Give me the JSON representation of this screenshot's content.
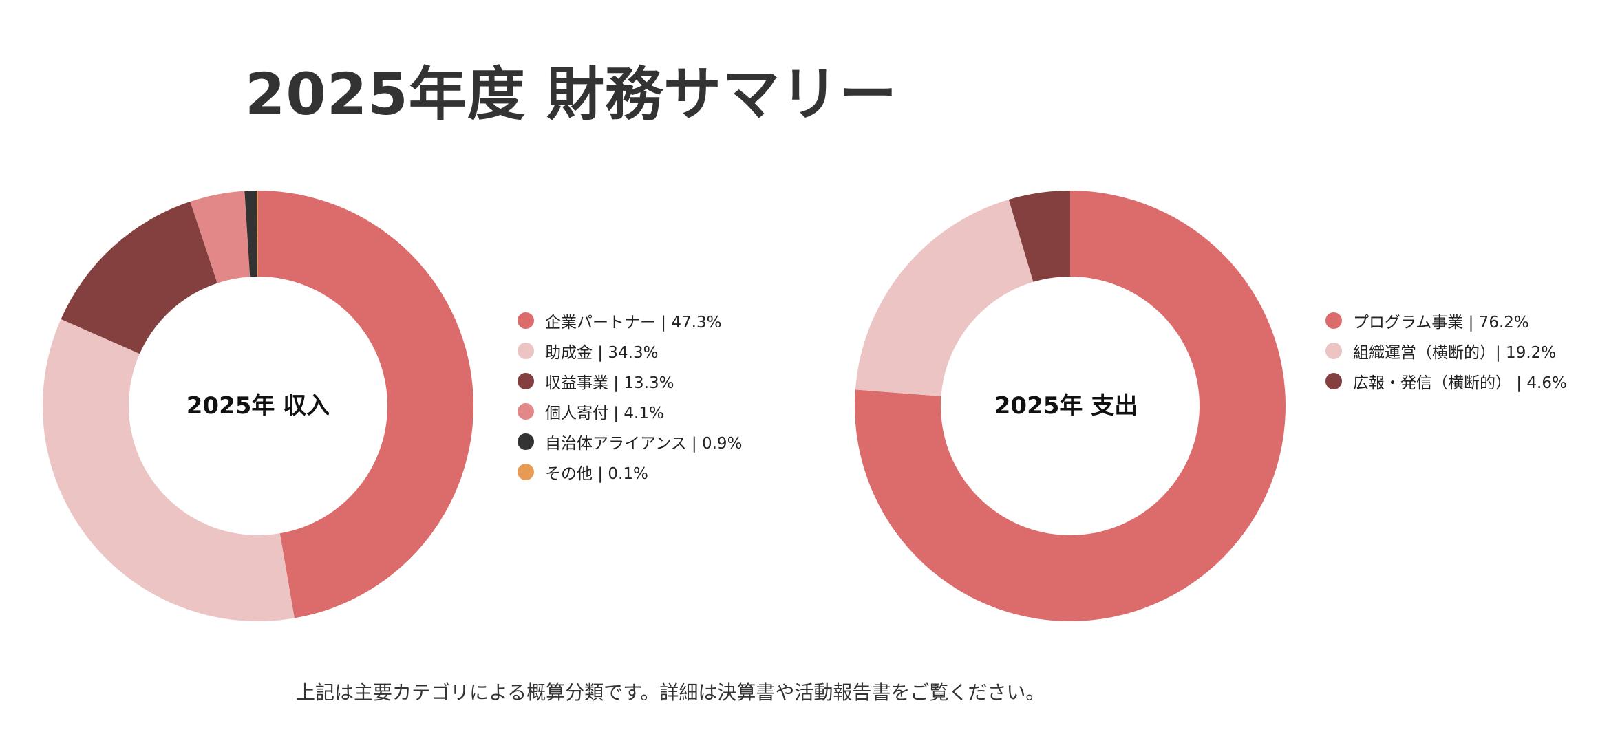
{
  "title": "2025年度 財務サマリー",
  "footnote": "上記は主要カテゴリによる概算分類です。詳細は決算書や活動報告書をご覧ください。",
  "chart_data": [
    {
      "type": "pie",
      "variant": "donut",
      "center_label": "2025年 収入",
      "legend_position": "right",
      "slices": [
        {
          "name": "企業パートナー",
          "value": 47.3,
          "display": "企業パートナー | 47.3%",
          "color": "#dc6b6b"
        },
        {
          "name": "助成金",
          "value": 34.3,
          "display": "助成金 | 34.3%",
          "color": "#ecc4c4"
        },
        {
          "name": "収益事業",
          "value": 13.3,
          "display": "収益事業 | 13.3%",
          "color": "#843f3f"
        },
        {
          "name": "個人寄付",
          "value": 4.1,
          "display": "個人寄付 | 4.1%",
          "color": "#e38888"
        },
        {
          "name": "自治体アライアンス",
          "value": 0.9,
          "display": "自治体アライアンス | 0.9%",
          "color": "#333333"
        },
        {
          "name": "その他",
          "value": 0.1,
          "display": "その他 | 0.1%",
          "color": "#e69a54"
        }
      ]
    },
    {
      "type": "pie",
      "variant": "donut",
      "center_label": "2025年 支出",
      "legend_position": "right",
      "slices": [
        {
          "name": "プログラム事業",
          "value": 76.2,
          "display": "プログラム事業 | 76.2%",
          "color": "#dc6b6b"
        },
        {
          "name": "組織運営（横断的）",
          "value": 19.2,
          "display": "組織運営（横断的）| 19.2%",
          "color": "#ecc4c4"
        },
        {
          "name": "広報・発信（横断的）",
          "value": 4.6,
          "display": "広報・発信（横断的） | 4.6%",
          "color": "#843f3f"
        }
      ]
    }
  ]
}
